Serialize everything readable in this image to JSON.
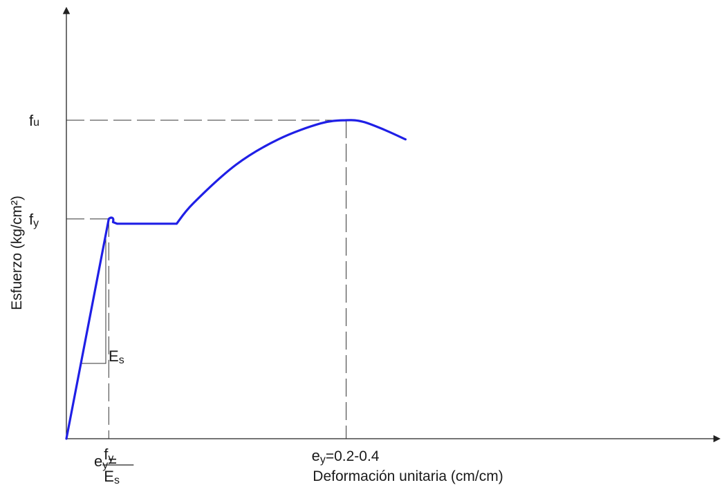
{
  "chart_data": {
    "type": "line",
    "title": "",
    "xlabel": "Deformación unitaria (cm/cm)",
    "ylabel": "Esfuerzo (kg/cm²)",
    "xlim": [
      0,
      1
    ],
    "ylim": [
      0,
      1
    ],
    "grid": false,
    "legend": "none",
    "colors": {
      "curve": "#1f1fe6",
      "axes": "#222222",
      "reference": "#333333"
    },
    "series": [
      {
        "x": [
          0,
          0.1,
          0.11,
          0.12,
          0.26,
          0.3,
          0.4,
          0.5,
          0.6,
          0.66,
          0.7,
          0.75,
          0.8
        ],
        "y": [
          0,
          0.69,
          0.68,
          0.675,
          0.675,
          0.74,
          0.86,
          0.94,
          0.99,
          1.0,
          0.995,
          0.97,
          0.94
        ]
      }
    ],
    "markers": {
      "fu": {
        "symbol": "f",
        "subscript": "u",
        "y": 1.0
      },
      "fy": {
        "symbol": "f",
        "subscript": "y",
        "y": 0.69
      },
      "ey_yield": {
        "symbol": "e",
        "subscript": "y",
        "equals": "=",
        "numerator_symbol": "f",
        "numerator_subscript": "y",
        "denominator_symbol": "E",
        "denominator_subscript": "s",
        "x": 0.1
      },
      "ey_ultimate": {
        "symbol": "e",
        "subscript": "y",
        "text": "=0.2-0.4",
        "x": 0.66
      },
      "modulus": {
        "symbol": "E",
        "subscript": "s"
      }
    }
  }
}
